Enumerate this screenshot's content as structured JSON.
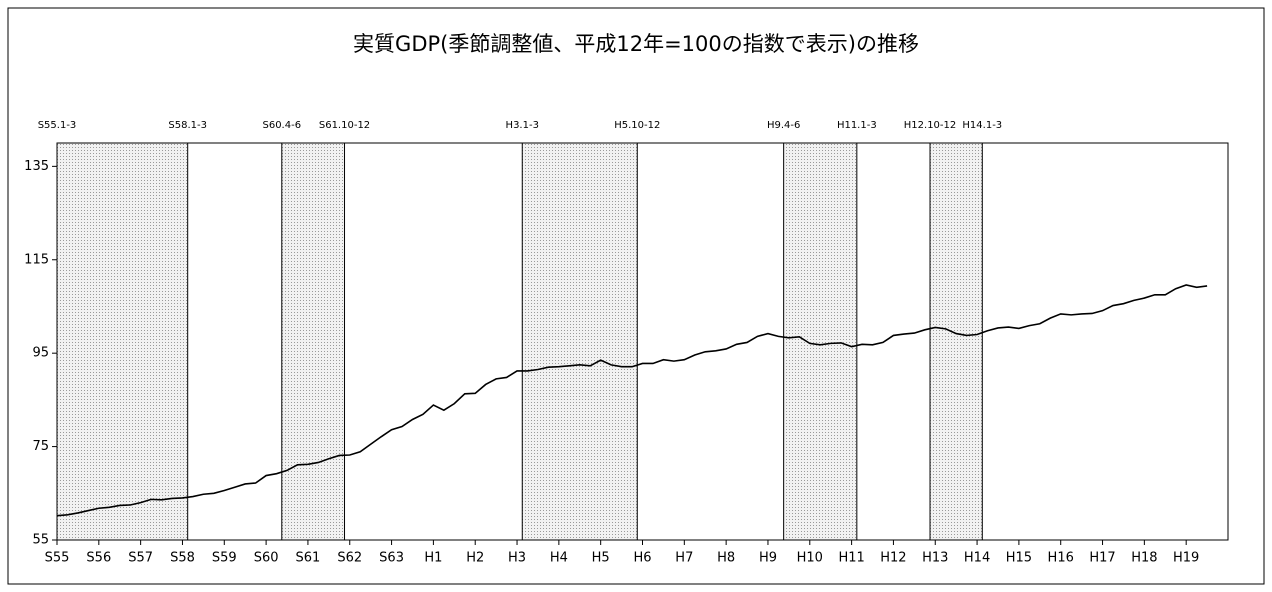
{
  "chart_data": {
    "type": "line",
    "title": "実質GDP(季節調整値、平成12年=100の指数で表示)の推移",
    "categories": [
      "S55",
      null,
      null,
      null,
      "S56",
      null,
      null,
      null,
      "S57",
      null,
      null,
      null,
      "S58",
      null,
      null,
      null,
      "S59",
      null,
      null,
      null,
      "S60",
      null,
      null,
      null,
      "S61",
      null,
      null,
      null,
      "S62",
      null,
      null,
      null,
      "S63",
      null,
      null,
      null,
      "H1",
      null,
      null,
      null,
      "H2",
      null,
      null,
      null,
      "H3",
      null,
      null,
      null,
      "H4",
      null,
      null,
      null,
      "H5",
      null,
      null,
      null,
      "H6",
      null,
      null,
      null,
      "H7",
      null,
      null,
      null,
      "H8",
      null,
      null,
      null,
      "H9",
      null,
      null,
      null,
      "H10",
      null,
      null,
      null,
      "H11",
      null,
      null,
      null,
      "H12",
      null,
      null,
      null,
      "H13",
      null,
      null,
      null,
      "H14",
      null,
      null,
      null,
      "H15",
      null,
      null,
      null,
      "H16",
      null,
      null,
      null,
      "H17",
      null,
      null,
      null,
      "H18",
      null,
      null,
      null,
      "H19",
      null,
      null
    ],
    "values": [
      60.2,
      60.4,
      60.8,
      61.3,
      61.8,
      62.0,
      62.4,
      62.5,
      63.0,
      63.7,
      63.6,
      63.9,
      64.0,
      64.3,
      64.8,
      65.0,
      65.6,
      66.3,
      67.0,
      67.2,
      68.8,
      69.2,
      69.9,
      71.1,
      71.2,
      71.6,
      72.4,
      73.1,
      73.2,
      73.9,
      75.5,
      77.1,
      78.6,
      79.3,
      80.8,
      81.9,
      83.9,
      82.8,
      84.2,
      86.3,
      86.4,
      88.3,
      89.5,
      89.8,
      91.2,
      91.2,
      91.5,
      92.0,
      92.1,
      92.3,
      92.5,
      92.3,
      93.5,
      92.5,
      92.1,
      92.1,
      92.8,
      92.8,
      93.6,
      93.3,
      93.6,
      94.6,
      95.3,
      95.5,
      95.9,
      96.9,
      97.3,
      98.6,
      99.2,
      98.6,
      98.3,
      98.5,
      97.1,
      96.8,
      97.1,
      97.2,
      96.4,
      96.9,
      96.8,
      97.3,
      98.8,
      99.1,
      99.3,
      100.0,
      100.5,
      100.2,
      99.2,
      98.8,
      99.0,
      99.8,
      100.4,
      100.6,
      100.3,
      100.9,
      101.3,
      102.5,
      103.4,
      103.2,
      103.4,
      103.5,
      104.1,
      105.2,
      105.6,
      106.3,
      106.8,
      107.5,
      107.5,
      108.8,
      109.6,
      109.1,
      109.4
    ],
    "color": "#000000",
    "ylim": [
      55,
      140
    ],
    "yticks": [
      55,
      75,
      95,
      115,
      135
    ],
    "bands": [
      {
        "start": "S55.1-3",
        "end": "S58.1-3"
      },
      {
        "start": "S60.4-6",
        "end": "S61.10-12"
      },
      {
        "start": "H3.1-3",
        "end": "H5.10-12"
      },
      {
        "start": "H9.4-6",
        "end": "H11.1-3"
      },
      {
        "start": "H12.10-12",
        "end": "H14.1-3"
      }
    ]
  }
}
